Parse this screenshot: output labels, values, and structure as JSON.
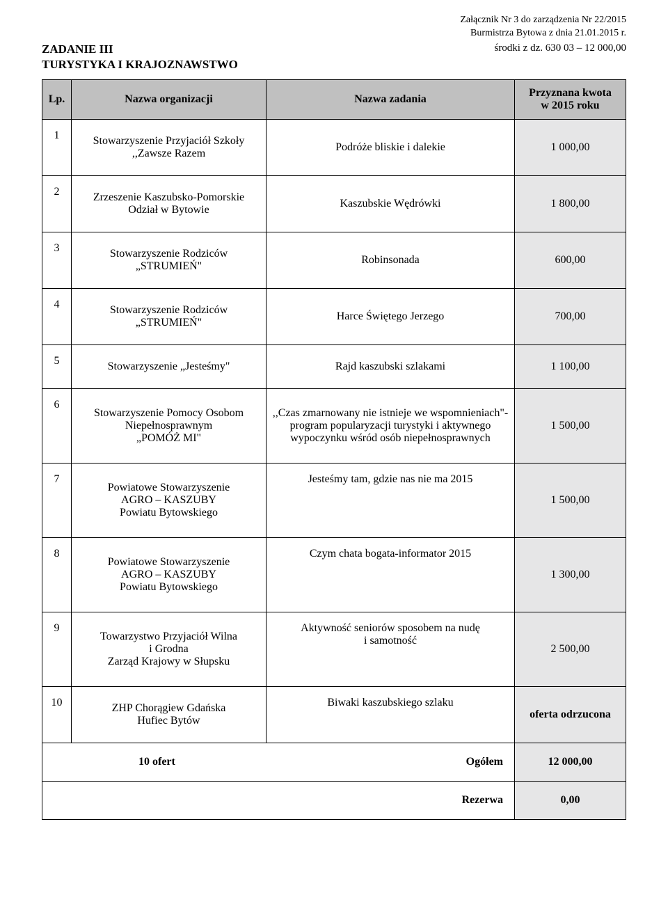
{
  "header": {
    "attachment_line1": "Załącznik Nr 3 do zarządzenia Nr 22/2015",
    "attachment_line2": "Burmistrza Bytowa  z dnia 21.01.2015 r.",
    "task_line1": "ZADANIE III",
    "task_line2": "TURYSTYKA I KRAJOZNAWSTWO",
    "funds_line": "środki z dz. 630 03 – 12 000,00"
  },
  "columns": {
    "lp": "Lp.",
    "org": "Nazwa organizacji",
    "zad": "Nazwa zadania",
    "amt_l1": "Przyznana kwota",
    "amt_l2": "w 2015 roku"
  },
  "rows": [
    {
      "lp": "1",
      "org": "Stowarzyszenie Przyjaciół Szkoły\n,,Zawsze Razem",
      "zad": "Podróże bliskie i dalekie",
      "amt": "1 000,00"
    },
    {
      "lp": "2",
      "org": "Zrzeszenie Kaszubsko-Pomorskie\nOdział w Bytowie",
      "zad": "Kaszubskie Wędrówki",
      "amt": "1 800,00"
    },
    {
      "lp": "3",
      "org": "Stowarzyszenie Rodziców\n„STRUMIEŃ\"",
      "zad": "Robinsonada",
      "amt": "600,00"
    },
    {
      "lp": "4",
      "org": "Stowarzyszenie Rodziców\n„STRUMIEŃ\"",
      "zad": "Harce Świętego Jerzego",
      "amt": "700,00"
    },
    {
      "lp": "5",
      "org": "Stowarzyszenie „Jesteśmy\"",
      "zad": "Rajd kaszubski szlakami",
      "amt": "1 100,00"
    },
    {
      "lp": "6",
      "org": "Stowarzyszenie Pomocy Osobom\nNiepełnosprawnym\n„POMÓŻ MI\"",
      "zad": ",,Czas zmarnowany nie istnieje we wspomnieniach\"- program popularyzacji turystyki i aktywnego wypoczynku wśród osób niepełnosprawnych",
      "amt": "1 500,00"
    },
    {
      "lp": "7",
      "org": "Powiatowe Stowarzyszenie\nAGRO – KASZUBY\nPowiatu Bytowskiego",
      "zad": "Jesteśmy tam, gdzie nas nie ma 2015",
      "amt": "1 500,00"
    },
    {
      "lp": "8",
      "org": "Powiatowe Stowarzyszenie\nAGRO – KASZUBY\nPowiatu Bytowskiego",
      "zad": "Czym chata bogata-informator 2015",
      "amt": "1 300,00"
    },
    {
      "lp": "9",
      "org": "Towarzystwo Przyjaciół Wilna\ni Grodna\nZarząd Krajowy w Słupsku",
      "zad": "Aktywność seniorów sposobem na nudę\ni samotność",
      "amt": "2 500,00"
    },
    {
      "lp": "10",
      "org": "ZHP Chorągiew Gdańska\nHufiec Bytów",
      "zad": "Biwaki kaszubskiego szlaku",
      "amt": "oferta odrzucona"
    }
  ],
  "summary": {
    "offers_label": "10 ofert",
    "total_label": "Ogółem",
    "total_value": "12 000,00",
    "reserve_label": "Rezerwa",
    "reserve_value": "0,00"
  },
  "style": {
    "header_bg": "#c0c0c0",
    "amount_bg": "#e6e6e7",
    "border_color": "#000000",
    "text_color": "#000000",
    "page_bg": "#ffffff",
    "font_family": "Times New Roman"
  }
}
